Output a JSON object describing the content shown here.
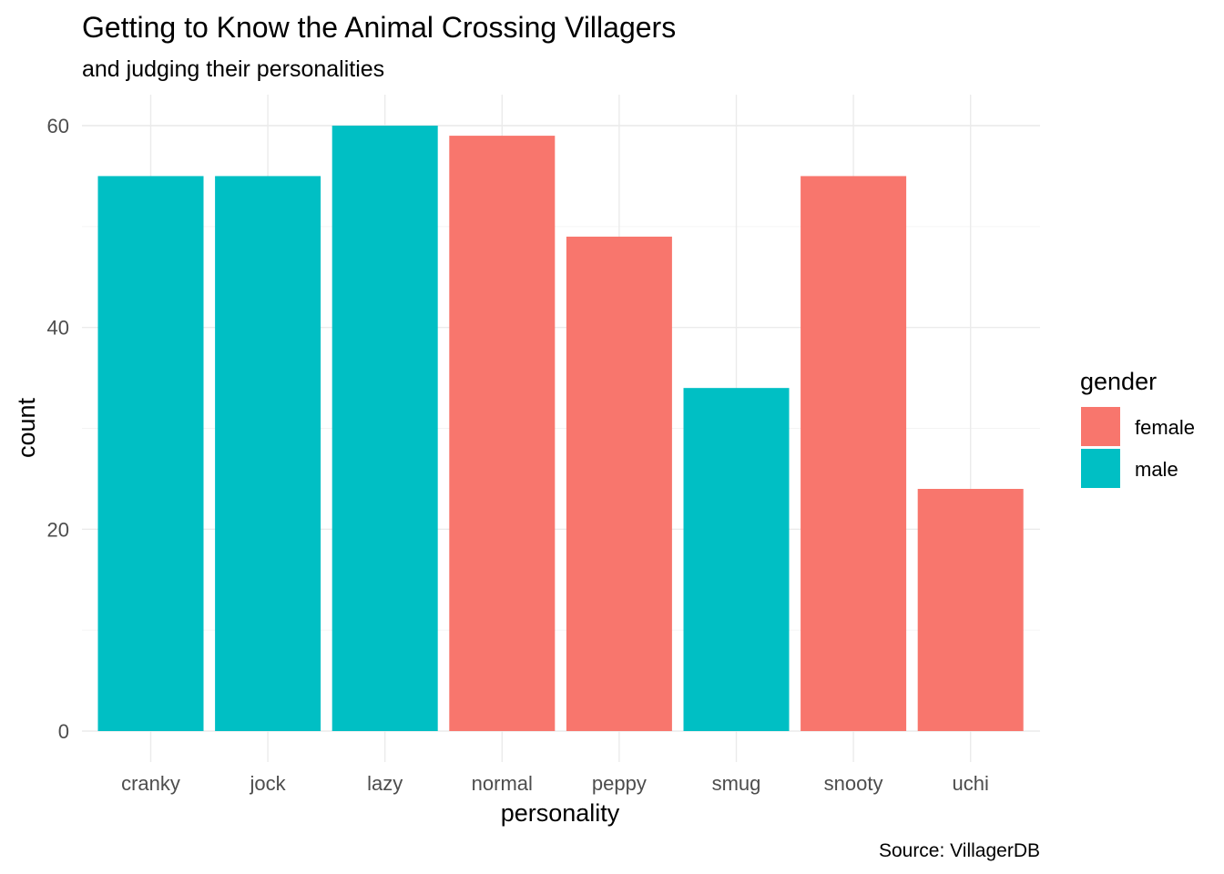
{
  "chart_data": {
    "type": "bar",
    "title": "Getting to Know the Animal Crossing Villagers",
    "subtitle": "and judging their personalities",
    "caption": "Source: VillagerDB",
    "xlabel": "personality",
    "ylabel": "count",
    "categories": [
      "cranky",
      "jock",
      "lazy",
      "normal",
      "peppy",
      "smug",
      "snooty",
      "uchi"
    ],
    "values": [
      55,
      55,
      60,
      59,
      49,
      34,
      55,
      24
    ],
    "groups": [
      "male",
      "male",
      "male",
      "female",
      "female",
      "male",
      "female",
      "female"
    ],
    "ylim": [
      0,
      60
    ],
    "y_ticks": [
      0,
      20,
      40,
      60
    ],
    "grid": true,
    "legend": {
      "title": "gender",
      "position": "right",
      "entries": [
        {
          "name": "female",
          "color": "#F8766D"
        },
        {
          "name": "male",
          "color": "#00BFC4"
        }
      ]
    }
  }
}
